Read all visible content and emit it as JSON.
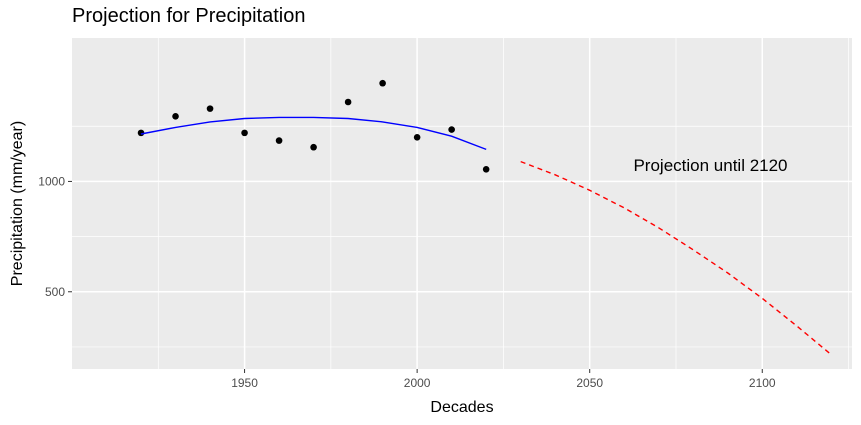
{
  "chart_data": {
    "type": "scatter",
    "title": "Projection for Precipitation",
    "xlabel": "Decades",
    "ylabel": "Precipitation (mm/year)",
    "xlim": [
      1900,
      2126
    ],
    "ylim": [
      150,
      1650
    ],
    "x_ticks": [
      1950,
      2000,
      2050,
      2100
    ],
    "x_tick_labels": [
      "1950",
      "2000",
      "2050",
      "2100"
    ],
    "y_ticks": [
      500,
      1000
    ],
    "y_tick_labels": [
      "500",
      "1000"
    ],
    "grid": true,
    "background": "#ebebeb",
    "gridline_color": "#ffffff",
    "series": [
      {
        "kind": "points",
        "color": "#000000",
        "x": [
          1920,
          1930,
          1940,
          1950,
          1960,
          1970,
          1980,
          1990,
          2000,
          2010,
          2020
        ],
        "y": [
          1220,
          1295,
          1330,
          1220,
          1185,
          1155,
          1360,
          1445,
          1200,
          1235,
          1055
        ]
      },
      {
        "kind": "fit",
        "color": "#0000ff",
        "style": "solid",
        "x": [
          1920,
          1930,
          1940,
          1950,
          1960,
          1970,
          1980,
          1990,
          2000,
          2010,
          2020
        ],
        "y": [
          1215,
          1245,
          1270,
          1285,
          1290,
          1290,
          1285,
          1270,
          1245,
          1205,
          1145
        ]
      },
      {
        "kind": "projection",
        "color": "#ff0000",
        "style": "dashed",
        "x": [
          2030,
          2040,
          2050,
          2060,
          2070,
          2080,
          2090,
          2100,
          2110,
          2120
        ],
        "y": [
          1090,
          1030,
          960,
          880,
          790,
          690,
          585,
          470,
          345,
          215
        ]
      }
    ],
    "annotations": [
      {
        "text": "Projection until 2120",
        "x": 2085,
        "y": 1075
      }
    ]
  }
}
